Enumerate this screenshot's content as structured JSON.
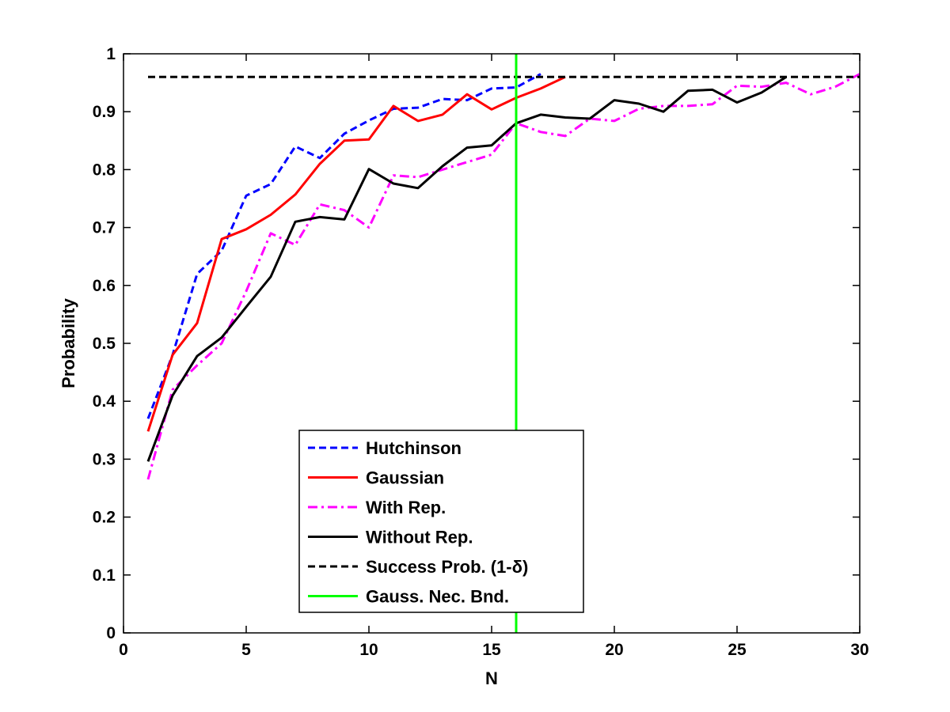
{
  "chart_data": {
    "type": "line",
    "title": "",
    "xlabel": "N",
    "ylabel": "Probability",
    "xlim": [
      0,
      30
    ],
    "ylim": [
      0,
      1
    ],
    "xticks": [
      0,
      5,
      10,
      15,
      20,
      25,
      30
    ],
    "yticks": [
      0,
      0.1,
      0.2,
      0.3,
      0.4,
      0.5,
      0.6,
      0.7,
      0.8,
      0.9,
      1
    ],
    "xtick_labels": [
      "0",
      "5",
      "10",
      "15",
      "20",
      "25",
      "30"
    ],
    "ytick_labels": [
      "0",
      "0.1",
      "0.2",
      "0.3",
      "0.4",
      "0.5",
      "0.6",
      "0.7",
      "0.8",
      "0.9",
      "1"
    ],
    "grid": false,
    "legend_position": "bottom-center",
    "series": [
      {
        "name": "Hutchinson",
        "color": "#0000ff",
        "style": "dashed",
        "x": [
          1,
          2,
          3,
          4,
          5,
          6,
          7,
          8,
          9,
          10,
          11,
          12,
          13,
          14,
          15,
          16,
          17
        ],
        "y": [
          0.37,
          0.48,
          0.62,
          0.66,
          0.755,
          0.775,
          0.84,
          0.82,
          0.862,
          0.885,
          0.905,
          0.907,
          0.922,
          0.92,
          0.94,
          0.942,
          0.965
        ]
      },
      {
        "name": "Gaussian",
        "color": "#ff0000",
        "style": "solid",
        "x": [
          1,
          2,
          3,
          4,
          5,
          6,
          7,
          8,
          9,
          10,
          11,
          12,
          13,
          14,
          15,
          16,
          17,
          18
        ],
        "y": [
          0.348,
          0.48,
          0.535,
          0.68,
          0.697,
          0.722,
          0.757,
          0.81,
          0.85,
          0.852,
          0.91,
          0.884,
          0.895,
          0.93,
          0.904,
          0.924,
          0.94,
          0.96
        ]
      },
      {
        "name": "With Rep.",
        "color": "#ff00ff",
        "style": "dashdot",
        "x": [
          1,
          2,
          3,
          4,
          5,
          6,
          7,
          8,
          9,
          10,
          11,
          12,
          13,
          14,
          15,
          16,
          17,
          18,
          19,
          20,
          21,
          22,
          23,
          24,
          25,
          26,
          27,
          28,
          29,
          30
        ],
        "y": [
          0.265,
          0.42,
          0.462,
          0.5,
          0.59,
          0.69,
          0.67,
          0.74,
          0.73,
          0.7,
          0.79,
          0.787,
          0.8,
          0.813,
          0.826,
          0.88,
          0.865,
          0.858,
          0.888,
          0.884,
          0.905,
          0.91,
          0.91,
          0.913,
          0.945,
          0.943,
          0.95,
          0.93,
          0.943,
          0.965
        ]
      },
      {
        "name": "Without Rep.",
        "color": "#000000",
        "style": "solid",
        "x": [
          1,
          2,
          3,
          4,
          5,
          6,
          7,
          8,
          9,
          10,
          11,
          12,
          13,
          14,
          15,
          16,
          17,
          18,
          19,
          20,
          21,
          22,
          23,
          24,
          25,
          26,
          27
        ],
        "y": [
          0.296,
          0.41,
          0.478,
          0.51,
          0.563,
          0.615,
          0.71,
          0.718,
          0.714,
          0.801,
          0.776,
          0.768,
          0.806,
          0.838,
          0.842,
          0.88,
          0.895,
          0.89,
          0.888,
          0.92,
          0.914,
          0.9,
          0.936,
          0.938,
          0.916,
          0.933,
          0.96
        ]
      },
      {
        "name": "Success Prob. (1-δ)",
        "color": "#000000",
        "style": "dashed",
        "x": [
          1,
          30
        ],
        "y": [
          0.96,
          0.96
        ]
      },
      {
        "name": "Gauss. Nec. Bnd.",
        "color": "#00ff00",
        "style": "solid",
        "x": [
          16,
          16
        ],
        "y": [
          0,
          1
        ]
      }
    ]
  }
}
